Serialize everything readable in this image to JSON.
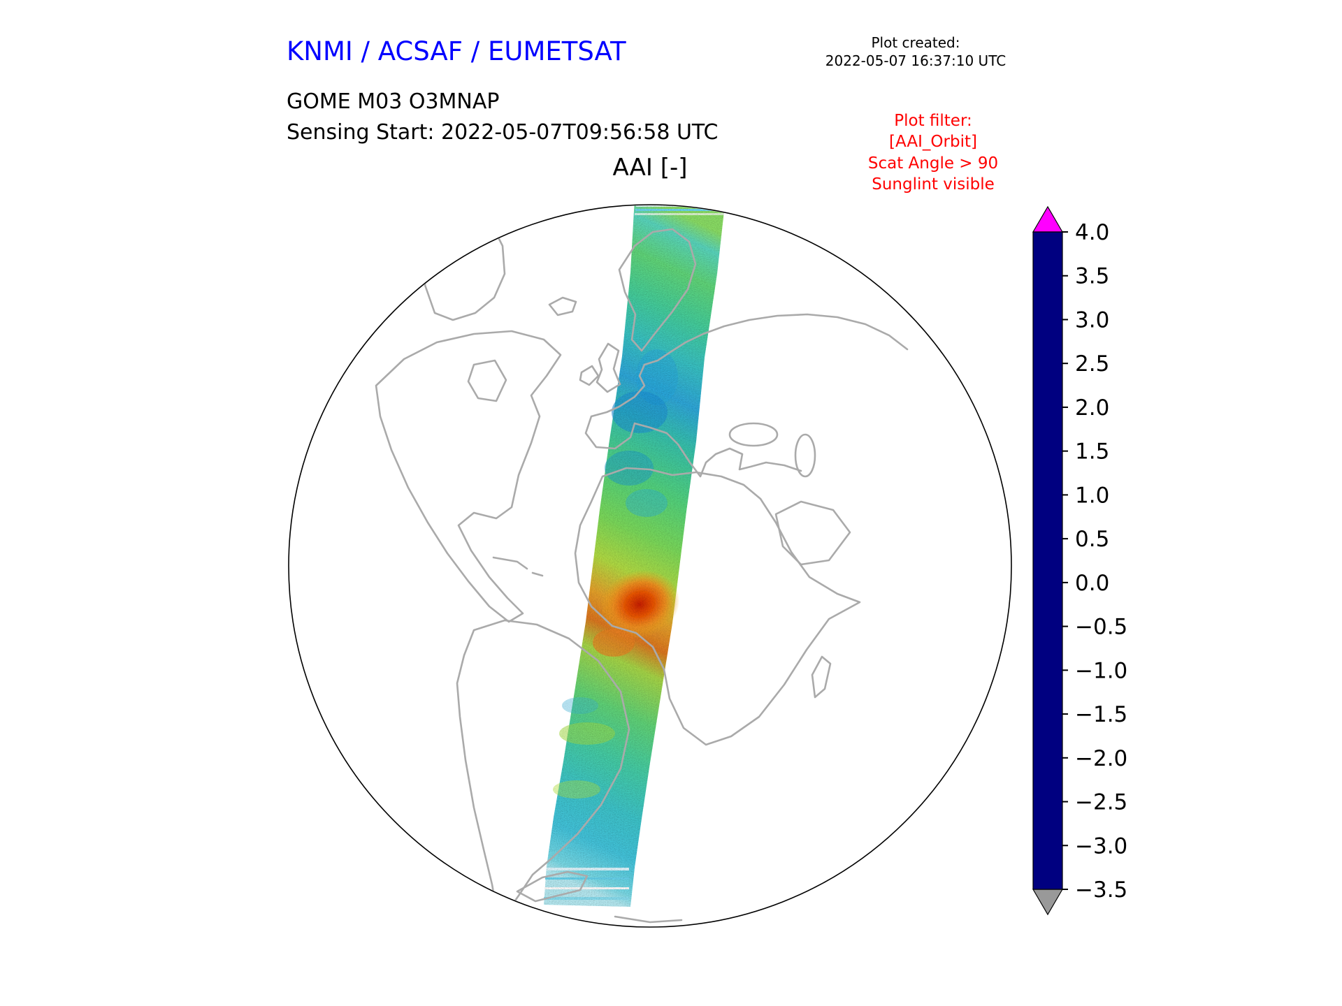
{
  "header": {
    "agency": "KNMI / ACSAF / EUMETSAT",
    "created_label": "Plot created:",
    "created_value": "2022-05-07 16:37:10 UTC"
  },
  "product": {
    "instrument": "GOME M03 O3MNAP",
    "sensing_start": "Sensing Start: 2022-05-07T09:56:58 UTC",
    "plot_title": "AAI [-]"
  },
  "plot_filter": {
    "color": "#ff0000",
    "lines": [
      "Plot filter:",
      "[AAI_Orbit]",
      "Scat Angle > 90",
      "Sunglint visible"
    ]
  },
  "colorbar": {
    "ticks": [
      "4.0",
      "3.5",
      "3.0",
      "2.5",
      "2.0",
      "1.5",
      "1.0",
      "0.5",
      "0.0",
      "−0.5",
      "−1.0",
      "−1.5",
      "−2.0",
      "−2.5",
      "−3.0",
      "−3.5"
    ],
    "gradient_stops_bottom_to_top": [
      {
        "value": -3.5,
        "color": "#000080"
      },
      {
        "value": -3.0,
        "color": "#0000c8"
      },
      {
        "value": -2.5,
        "color": "#0000ff"
      },
      {
        "value": -2.0,
        "color": "#0033ff"
      },
      {
        "value": -1.5,
        "color": "#0077ff"
      },
      {
        "value": -1.0,
        "color": "#00bbff"
      },
      {
        "value": -0.5,
        "color": "#00eedd"
      },
      {
        "value": 0.0,
        "color": "#00e08c"
      },
      {
        "value": 0.5,
        "color": "#55e055"
      },
      {
        "value": 1.0,
        "color": "#aaee22"
      },
      {
        "value": 1.5,
        "color": "#ffff00"
      },
      {
        "value": 2.0,
        "color": "#ffc800"
      },
      {
        "value": 2.5,
        "color": "#ff8c00"
      },
      {
        "value": 3.0,
        "color": "#ff3c00"
      },
      {
        "value": 3.5,
        "color": "#cc0f00"
      },
      {
        "value": 4.0,
        "color": "#7f0000"
      }
    ],
    "over_color": "#ff00ff",
    "under_color": "#999999"
  },
  "chart_data": {
    "type": "heatmap",
    "title": "AAI [-]",
    "subtitle": "GOME M03 O3MNAP, Sensing Start: 2022-05-07T09:56:58 UTC",
    "projection": "orthographic globe centered on Atlantic / Europe / Africa",
    "map_outline_color": "#aaaaaa",
    "colorbar": {
      "label": "AAI [-]",
      "range": [
        -3.5,
        4.0
      ],
      "tick_step": 0.5,
      "extend": "both",
      "over_color": "#ff00ff",
      "under_color": "#999999"
    },
    "swath": {
      "description": "Single GOME-2 (Metop) orbit swath running from the Arctic (~80N over Scandinavia / Barents Sea) south-southwest across central Europe, the Mediterranean, northwest Africa and the tropical/south Atlantic down to ~70S",
      "background_aai_range": [
        -1.0,
        1.0
      ],
      "dominant_colors": [
        "green",
        "cyan"
      ],
      "features": [
        {
          "name": "Saharan dust plume over NW Africa",
          "approx_aai": 3.0
        },
        {
          "name": "Cloud/scene noise (blue patches) over central Europe",
          "approx_aai": -1.5
        },
        {
          "name": "Noisy scan rows at swath ends near poles",
          "approx_aai": -3.0
        }
      ]
    },
    "filters_applied": [
      "[AAI_Orbit]",
      "Scat Angle > 90",
      "Sunglint visible"
    ]
  }
}
